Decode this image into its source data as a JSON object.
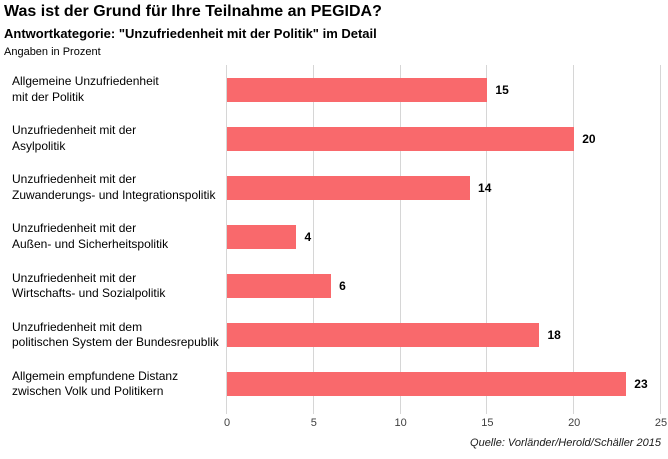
{
  "chart_data": {
    "type": "bar",
    "orientation": "horizontal",
    "title": "Was ist der Grund für Ihre Teilnahme an PEGIDA?",
    "subtitle": "Antwortkategorie: \"Unzufriedenheit mit der Politik\" im Detail",
    "units_note": "Angaben in Prozent",
    "categories": [
      "Allgemeine Unzufriedenheit mit der Politik",
      "Unzufriedenheit mit der Asylpolitik",
      "Unzufriedenheit mit der Zuwanderungs- und Integrationspolitik",
      "Unzufriedenheit mit der Außen- und Sicherheitspolitik",
      "Unzufriedenheit mit der Wirtschafts- und Sozialpolitik",
      "Unzufriedenheit mit dem politischen System der Bundesrepublik",
      "Allgemein empfundene Distanz zwischen Volk und Politikern"
    ],
    "category_lines": [
      [
        "Allgemeine Unzufriedenheit",
        "mit der Politik"
      ],
      [
        "Unzufriedenheit mit der",
        "Asylpolitik"
      ],
      [
        "Unzufriedenheit mit der",
        "Zuwanderungs- und Integrationspolitik"
      ],
      [
        "Unzufriedenheit mit der",
        "Außen- und Sicherheitspolitik"
      ],
      [
        "Unzufriedenheit mit der",
        "Wirtschafts- und Sozialpolitik"
      ],
      [
        "Unzufriedenheit mit dem",
        "politischen System der Bundesrepublik"
      ],
      [
        "Allgemein empfundene Distanz",
        "zwischen Volk und Politikern"
      ]
    ],
    "values": [
      15,
      20,
      14,
      4,
      6,
      18,
      23
    ],
    "xlabel": "",
    "ylabel": "",
    "xlim": [
      0,
      25
    ],
    "x_ticks": [
      0,
      5,
      10,
      15,
      20,
      25
    ],
    "grid": true,
    "legend": "none",
    "bar_color": "#f9696c",
    "gridline_color": "#d6d6d6",
    "source": "Quelle: Vorländer/Herold/Schäller 2015"
  }
}
